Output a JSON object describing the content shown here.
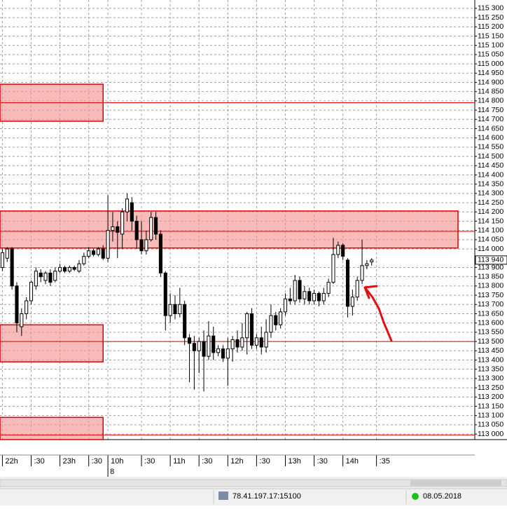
{
  "chart_data": {
    "type": "candlestick",
    "xlim": [
      -0.5,
      98.5
    ],
    "xticks": [
      {
        "value": 0,
        "label": "22h"
      },
      {
        "value": 6,
        "label": ":30"
      },
      {
        "value": 12,
        "label": "23h"
      },
      {
        "value": 18,
        "label": ":30"
      },
      {
        "value": 22,
        "label": "10h"
      },
      {
        "value": 29,
        "label": ":30"
      },
      {
        "value": 35,
        "label": "11h"
      },
      {
        "value": 41,
        "label": ":30"
      },
      {
        "value": 47,
        "label": "12h"
      },
      {
        "value": 53,
        "label": ":30"
      },
      {
        "value": 59,
        "label": "13h"
      },
      {
        "value": 65,
        "label": ":30"
      },
      {
        "value": 71,
        "label": "14h"
      },
      {
        "value": 78,
        "label": ":35"
      }
    ],
    "date_marks": [
      {
        "value": 22,
        "label": "8"
      }
    ],
    "ylim": [
      112970,
      115345
    ],
    "yticks": [
      {
        "value": 113000,
        "label": "113 000"
      },
      {
        "value": 113050,
        "label": "113 050"
      },
      {
        "value": 113100,
        "label": "113 100"
      },
      {
        "value": 113150,
        "label": "113 150"
      },
      {
        "value": 113200,
        "label": "113 200"
      },
      {
        "value": 113250,
        "label": "113 250"
      },
      {
        "value": 113300,
        "label": "113 300"
      },
      {
        "value": 113350,
        "label": "113 350"
      },
      {
        "value": 113400,
        "label": "113 400"
      },
      {
        "value": 113450,
        "label": "113 450"
      },
      {
        "value": 113500,
        "label": "113 500"
      },
      {
        "value": 113550,
        "label": "113 550"
      },
      {
        "value": 113600,
        "label": "113 600"
      },
      {
        "value": 113650,
        "label": "113 650"
      },
      {
        "value": 113700,
        "label": "113 700"
      },
      {
        "value": 113750,
        "label": "113 750"
      },
      {
        "value": 113800,
        "label": "113 800"
      },
      {
        "value": 113850,
        "label": "113 850"
      },
      {
        "value": 113900,
        "label": "113 900"
      },
      {
        "value": 114000,
        "label": "114 000"
      },
      {
        "value": 114050,
        "label": "114 050"
      },
      {
        "value": 114100,
        "label": "114 100"
      },
      {
        "value": 114150,
        "label": "114 150"
      },
      {
        "value": 114200,
        "label": "114 200"
      },
      {
        "value": 114250,
        "label": "114 250"
      },
      {
        "value": 114300,
        "label": "114 300"
      },
      {
        "value": 114350,
        "label": "114 350"
      },
      {
        "value": 114400,
        "label": "114 400"
      },
      {
        "value": 114450,
        "label": "114 450"
      },
      {
        "value": 114500,
        "label": "114 500"
      },
      {
        "value": 114550,
        "label": "114 550"
      },
      {
        "value": 114600,
        "label": "114 600"
      },
      {
        "value": 114650,
        "label": "114 650"
      },
      {
        "value": 114700,
        "label": "114 700"
      },
      {
        "value": 114750,
        "label": "114 750"
      },
      {
        "value": 114800,
        "label": "114 800"
      },
      {
        "value": 114850,
        "label": "114 850"
      },
      {
        "value": 114900,
        "label": "114 900"
      },
      {
        "value": 114950,
        "label": "114 950"
      },
      {
        "value": 115000,
        "label": "115 000"
      },
      {
        "value": 115050,
        "label": "115 050"
      },
      {
        "value": 115100,
        "label": "115 100"
      },
      {
        "value": 115150,
        "label": "115 150"
      },
      {
        "value": 115200,
        "label": "115 200"
      },
      {
        "value": 115250,
        "label": "115 250"
      },
      {
        "value": 115300,
        "label": "115 300"
      }
    ],
    "grid": true,
    "last_price": {
      "value": 113940,
      "label": "113 940"
    },
    "open": [
      113900,
      113950,
      114000,
      113800,
      113580,
      113650,
      113720,
      113800,
      113870,
      113830,
      113870,
      113830,
      113880,
      113900,
      113880,
      113900,
      113880,
      113920,
      113960,
      113990,
      113970,
      114000,
      113950,
      114100,
      114120,
      114080,
      114200,
      114250,
      114150,
      114050,
      113990,
      114050,
      114170,
      114080,
      113870,
      113640,
      113700,
      113650,
      113700,
      113520,
      113490,
      113450,
      113500,
      113420,
      113530,
      113440,
      113460,
      113410,
      113460,
      113510,
      113470,
      113520,
      113650,
      113480,
      113520,
      113470,
      113550,
      113640,
      113590,
      113660,
      113730,
      113720,
      113830,
      113730,
      113770,
      113720,
      113760,
      113720,
      113760,
      113820,
      113970,
      114020,
      113940,
      113690,
      113740,
      113830,
      113910,
      113930
    ],
    "high": [
      114000,
      114010,
      114010,
      113820,
      113680,
      113740,
      113830,
      113900,
      113890,
      113880,
      113890,
      113900,
      113920,
      113910,
      113910,
      113910,
      113940,
      113980,
      114010,
      114000,
      114010,
      114020,
      114290,
      114200,
      114150,
      114220,
      114300,
      114280,
      114180,
      114150,
      114100,
      114200,
      114200,
      114100,
      113880,
      113760,
      113750,
      113790,
      113720,
      113540,
      113530,
      113520,
      113560,
      113610,
      113580,
      113480,
      113480,
      113520,
      113530,
      113560,
      113600,
      113660,
      113680,
      113540,
      113580,
      113620,
      113700,
      113660,
      113680,
      113760,
      113790,
      113860,
      113850,
      113800,
      113790,
      113780,
      113770,
      113790,
      113840,
      114060,
      114040,
      114030,
      113950,
      113780,
      113850,
      114050,
      113940,
      113950
    ],
    "low": [
      113880,
      113930,
      113780,
      113550,
      113530,
      113620,
      113700,
      113780,
      113820,
      113810,
      113800,
      113820,
      113870,
      113870,
      113870,
      113880,
      113870,
      113910,
      113950,
      113960,
      113960,
      113940,
      113930,
      114040,
      113950,
      114000,
      114150,
      114100,
      114000,
      113970,
      113970,
      114040,
      114050,
      113850,
      113560,
      113600,
      113620,
      113630,
      113480,
      113280,
      113240,
      113330,
      113230,
      113400,
      113400,
      113420,
      113390,
      113260,
      113390,
      113440,
      113450,
      113430,
      113460,
      113460,
      113430,
      113440,
      113520,
      113560,
      113570,
      113640,
      113700,
      113700,
      113710,
      113700,
      113700,
      113700,
      113690,
      113700,
      113740,
      113810,
      113950,
      113940,
      113630,
      113640,
      113720,
      113810,
      113890,
      113910
    ],
    "close": [
      113980,
      114000,
      113800,
      113600,
      113650,
      113720,
      113820,
      113880,
      113850,
      113870,
      113820,
      113880,
      113900,
      113880,
      113900,
      113890,
      113920,
      113960,
      113990,
      113970,
      114000,
      113950,
      114100,
      114120,
      114090,
      114200,
      114270,
      114150,
      114050,
      113990,
      114050,
      114170,
      114080,
      113870,
      113640,
      113700,
      113650,
      113700,
      113520,
      113490,
      113450,
      113500,
      113420,
      113530,
      113440,
      113460,
      113410,
      113460,
      113510,
      113470,
      113520,
      113650,
      113480,
      113520,
      113470,
      113550,
      113640,
      113590,
      113660,
      113730,
      113720,
      113830,
      113730,
      113770,
      113720,
      113760,
      113720,
      113760,
      113820,
      113970,
      114020,
      113960,
      113690,
      113740,
      113830,
      113910,
      113920,
      113940
    ],
    "zones": [
      {
        "low": 114690,
        "high": 114890,
        "end": 21
      },
      {
        "low": 114005,
        "high": 114205,
        "end": 95
      },
      {
        "low": 113390,
        "high": 113590,
        "end": 21
      },
      {
        "low": 112970,
        "high": 113090,
        "end": 21
      }
    ],
    "levels": [
      114790,
      114095,
      113500,
      112995
    ]
  },
  "status_bar": {
    "connection": "78.41.197.17:15100",
    "date": "08.05.2018"
  }
}
